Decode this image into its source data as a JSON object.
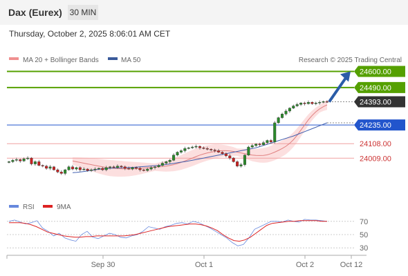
{
  "header": {
    "title": "Dax (Eurex)",
    "timeframe": "30 MIN"
  },
  "datetime": "Thursday, October 2, 2025 8:06:01 AM CET",
  "legend": {
    "ma20": "MA 20 + Bollinger Bands",
    "ma50": "MA 50",
    "credit": "Research © 2025 Trading Central"
  },
  "rsi_legend": {
    "rsi": "RSI",
    "ma9": "9MA"
  },
  "colors": {
    "resistance": "#55a000",
    "current": "#333333",
    "support": "#2255cc",
    "minor": "#cc3333",
    "up": "#2a8a2a",
    "down": "#cc2222",
    "ma20": "#e08080",
    "ma50": "#4060b0",
    "bollinger": "#fbd9d9",
    "arrow": "#2a5ca8",
    "rsi": "#6688dd",
    "rsi_ma": "#dd2222"
  },
  "chart_data": {
    "type": "candlestick",
    "x_ticks": [
      "Sep 30",
      "Oct 1",
      "Oct 2",
      "Oct 12"
    ],
    "y_range": [
      23780,
      24640
    ],
    "levels": [
      {
        "label": "24600.00",
        "value": 24600,
        "kind": "resistance"
      },
      {
        "label": "24490.00",
        "value": 24490,
        "kind": "resistance"
      },
      {
        "label": "24393.00",
        "value": 24393,
        "kind": "current"
      },
      {
        "label": "24235.00",
        "value": 24235,
        "kind": "support"
      },
      {
        "label": "24108.00",
        "value": 24108,
        "kind": "minor"
      },
      {
        "label": "24009.00",
        "value": 24009,
        "kind": "minor"
      }
    ],
    "close": [
      23985,
      23995,
      24000,
      23990,
      24005,
      24010,
      23970,
      23985,
      23960,
      23955,
      23940,
      23950,
      23930,
      23915,
      23905,
      23930,
      23950,
      23935,
      23945,
      23930,
      23935,
      23925,
      23930,
      23935,
      23940,
      23930,
      23945,
      23950,
      23945,
      23955,
      23950,
      23940,
      23935,
      23945,
      23940,
      23930,
      23925,
      23935,
      23945,
      23950,
      23960,
      23975,
      23985,
      23995,
      24030,
      24050,
      24060,
      24075,
      24080,
      24085,
      24090,
      24080,
      24075,
      24070,
      24065,
      24060,
      24050,
      24040,
      24025,
      24010,
      23985,
      23955,
      23965,
      24030,
      24085,
      24095,
      24105,
      24100,
      24115,
      24130,
      24120,
      24250,
      24285,
      24310,
      24330,
      24350,
      24365,
      24375,
      24385,
      24380,
      24390,
      24380,
      24385,
      24390,
      24395,
      24393
    ],
    "ma20": [
      23990,
      23985,
      23980,
      23975,
      23970,
      23965,
      23960,
      23955,
      23950,
      23945,
      23942,
      23940,
      23938,
      23937,
      23936,
      23936,
      23937,
      23938,
      23940,
      23942,
      23944,
      23946,
      23948,
      23950,
      23952,
      23955,
      23960,
      23965,
      23972,
      23980,
      23990,
      24000,
      24010,
      24020,
      24030,
      24038,
      24045,
      24050,
      24055,
      24058,
      24060,
      24060,
      24058,
      24055,
      24050,
      24045,
      24040,
      24035,
      24030,
      24028,
      24027,
      24028,
      24032,
      24040,
      24050,
      24062,
      24075,
      24090,
      24110,
      24135,
      24165,
      24200,
      24235,
      24270,
      24300,
      24325,
      24345,
      24360,
      24372
    ],
    "ma50": [
      23910,
      23912,
      23915,
      23918,
      23922,
      23926,
      23930,
      23933,
      23936,
      23938,
      23940,
      23942,
      23943,
      23944,
      23945,
      23946,
      23947,
      23948,
      23950,
      23952,
      23954,
      23956,
      23958,
      23960,
      23963,
      23966,
      23970,
      23974,
      23978,
      23982,
      23986,
      23990,
      23995,
      24000,
      24005,
      24010,
      24015,
      24020,
      24025,
      24030,
      24035,
      24040,
      24045,
      24050,
      24055,
      24060,
      24065,
      24070,
      24075,
      24080,
      24088,
      24096,
      24104,
      24112,
      24120,
      24128,
      24136,
      24144,
      24152,
      24160,
      24170,
      24180,
      24190,
      24200,
      24210,
      24220,
      24230,
      24240,
      24250
    ],
    "rsi": [
      70,
      72,
      69,
      66,
      68,
      71,
      60,
      55,
      48,
      52,
      45,
      42,
      40,
      50,
      55,
      46,
      44,
      48,
      52,
      50,
      46,
      45,
      48,
      50,
      55,
      62,
      60,
      58,
      62,
      64,
      67,
      68,
      66,
      70,
      68,
      64,
      60,
      55,
      50,
      45,
      38,
      33,
      35,
      45,
      58,
      62,
      66,
      70,
      70,
      69,
      72,
      70,
      69,
      73,
      72,
      72,
      71,
      70
    ],
    "rsi_ma": [
      68,
      68,
      68,
      67,
      65,
      62,
      58,
      54,
      52,
      50,
      48,
      47,
      46,
      46,
      47,
      47,
      48,
      48,
      48,
      48,
      48,
      48,
      49,
      50,
      52,
      54,
      56,
      58,
      60,
      62,
      63,
      64,
      65,
      66,
      66,
      65,
      63,
      60,
      56,
      50,
      45,
      41,
      40,
      42,
      46,
      52,
      58,
      64,
      67,
      68,
      69,
      70,
      70,
      71,
      71,
      71,
      71,
      70,
      70
    ],
    "rsi_ticks": [
      "70",
      "50",
      "30"
    ]
  }
}
